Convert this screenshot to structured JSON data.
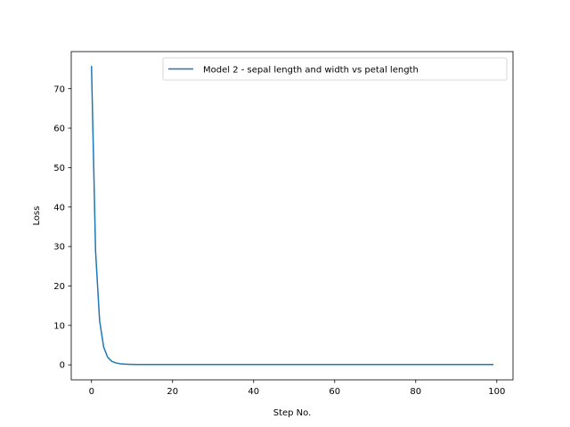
{
  "chart_data": {
    "type": "line",
    "title": "",
    "xlabel": "Step No.",
    "ylabel": "Loss",
    "xlim": [
      -5,
      104
    ],
    "ylim": [
      -3.8,
      79.4
    ],
    "xticks": [
      0,
      20,
      40,
      60,
      80,
      100
    ],
    "yticks": [
      0,
      10,
      20,
      30,
      40,
      50,
      60,
      70
    ],
    "grid": false,
    "legend": "upper right",
    "series": [
      {
        "name": "Model 2 - sepal length and width vs petal length",
        "color": "#1f77b4",
        "x": [
          0,
          1,
          2,
          3,
          4,
          5,
          6,
          7,
          8,
          9,
          10,
          11,
          12,
          13,
          14,
          15,
          16,
          17,
          18,
          19,
          20,
          21,
          22,
          23,
          24,
          25,
          26,
          27,
          28,
          29,
          30,
          31,
          32,
          33,
          34,
          35,
          36,
          37,
          38,
          39,
          40,
          41,
          42,
          43,
          44,
          45,
          46,
          47,
          48,
          49,
          50,
          51,
          52,
          53,
          54,
          55,
          56,
          57,
          58,
          59,
          60,
          61,
          62,
          63,
          64,
          65,
          66,
          67,
          68,
          69,
          70,
          71,
          72,
          73,
          74,
          75,
          76,
          77,
          78,
          79,
          80,
          81,
          82,
          83,
          84,
          85,
          86,
          87,
          88,
          89,
          90,
          91,
          92,
          93,
          94,
          95,
          96,
          97,
          98,
          99
        ],
        "y": [
          75.6,
          28.8,
          11.2,
          4.5,
          1.9,
          0.9,
          0.5,
          0.3,
          0.2,
          0.15,
          0.12,
          0.1,
          0.1,
          0.1,
          0.1,
          0.1,
          0.1,
          0.1,
          0.1,
          0.1,
          0.1,
          0.1,
          0.1,
          0.1,
          0.1,
          0.1,
          0.1,
          0.1,
          0.1,
          0.1,
          0.1,
          0.1,
          0.1,
          0.1,
          0.1,
          0.1,
          0.1,
          0.1,
          0.1,
          0.1,
          0.1,
          0.1,
          0.1,
          0.1,
          0.1,
          0.1,
          0.1,
          0.1,
          0.1,
          0.1,
          0.1,
          0.1,
          0.1,
          0.1,
          0.1,
          0.1,
          0.1,
          0.1,
          0.1,
          0.1,
          0.1,
          0.1,
          0.1,
          0.1,
          0.1,
          0.1,
          0.1,
          0.1,
          0.1,
          0.1,
          0.1,
          0.1,
          0.1,
          0.1,
          0.1,
          0.1,
          0.1,
          0.1,
          0.1,
          0.1,
          0.1,
          0.1,
          0.1,
          0.1,
          0.1,
          0.1,
          0.1,
          0.1,
          0.1,
          0.1,
          0.1,
          0.1,
          0.1,
          0.1,
          0.1,
          0.1,
          0.1,
          0.1,
          0.1,
          0.1
        ]
      }
    ]
  }
}
